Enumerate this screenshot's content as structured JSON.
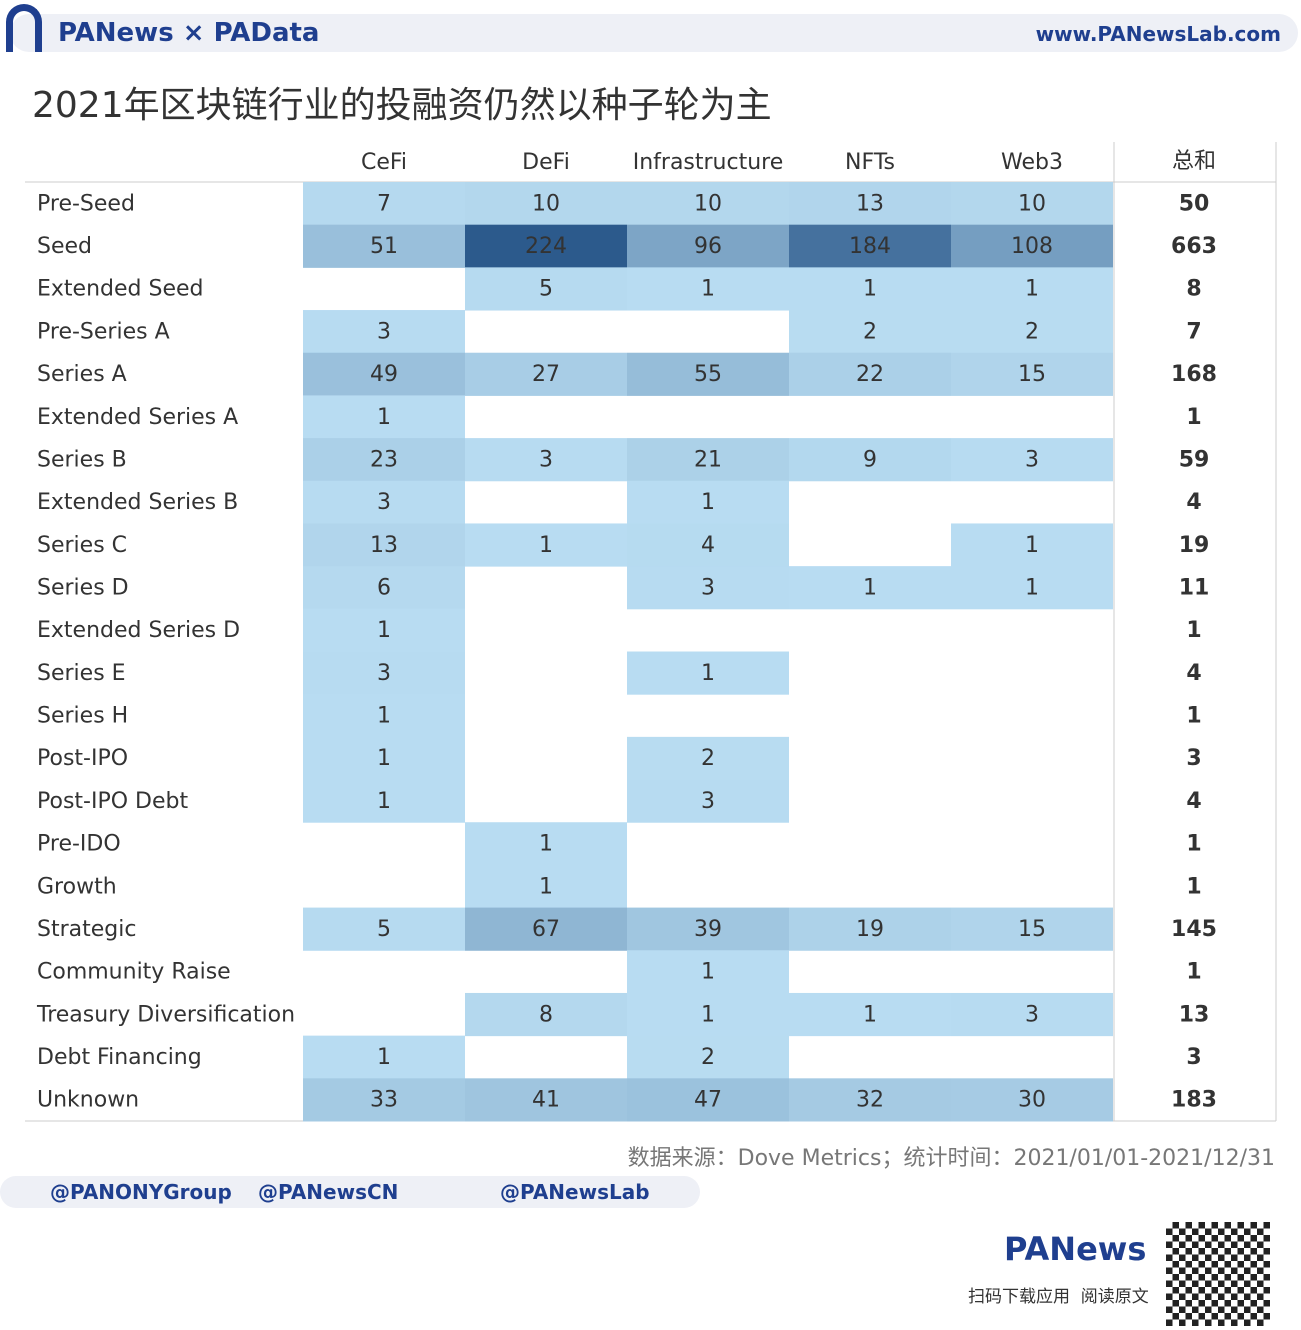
{
  "brand": {
    "left": "PANews × PAData",
    "site": "www.PANewsLab.com"
  },
  "chart_data": {
    "type": "heatmap",
    "title": "2021年区块链行业的投融资仍然以种子轮为主",
    "columns": [
      "CeFi",
      "DeFi",
      "Infrastructure",
      "NFTs",
      "Web3"
    ],
    "total_label": "总和",
    "categories": [
      "Pre-Seed",
      "Seed",
      "Extended Seed",
      "Pre-Series A",
      "Series A",
      "Extended Series A",
      "Series B",
      "Extended Series B",
      "Series C",
      "Series D",
      "Extended Series D",
      "Series E",
      "Series H",
      "Post-IPO",
      "Post-IPO Debt",
      "Pre-IDO",
      "Growth",
      "Strategic",
      "Community Raise",
      "Treasury Diversification",
      "Debt Financing",
      "Unknown"
    ],
    "values": [
      [
        7,
        10,
        10,
        13,
        10
      ],
      [
        51,
        224,
        96,
        184,
        108
      ],
      [
        null,
        5,
        1,
        1,
        1
      ],
      [
        3,
        null,
        null,
        2,
        2
      ],
      [
        49,
        27,
        55,
        22,
        15
      ],
      [
        1,
        null,
        null,
        null,
        null
      ],
      [
        23,
        3,
        21,
        9,
        3
      ],
      [
        3,
        null,
        1,
        null,
        null
      ],
      [
        13,
        1,
        4,
        null,
        1
      ],
      [
        6,
        null,
        3,
        1,
        1
      ],
      [
        1,
        null,
        null,
        null,
        null
      ],
      [
        3,
        null,
        1,
        null,
        null
      ],
      [
        1,
        null,
        null,
        null,
        null
      ],
      [
        1,
        null,
        2,
        null,
        null
      ],
      [
        1,
        null,
        3,
        null,
        null
      ],
      [
        null,
        1,
        null,
        null,
        null
      ],
      [
        null,
        1,
        null,
        null,
        null
      ],
      [
        5,
        67,
        39,
        19,
        15
      ],
      [
        null,
        null,
        1,
        null,
        null
      ],
      [
        null,
        8,
        1,
        1,
        3
      ],
      [
        1,
        null,
        2,
        null,
        null
      ],
      [
        33,
        41,
        47,
        32,
        30
      ]
    ],
    "totals": [
      50,
      663,
      8,
      7,
      168,
      1,
      59,
      4,
      19,
      11,
      1,
      4,
      1,
      3,
      4,
      1,
      1,
      145,
      1,
      13,
      3,
      183
    ],
    "colors": {
      "low": "#b9ddf2",
      "high": "#2c5a8c"
    },
    "source": "数据来源：Dove Metrics；统计时间：2021/01/01-2021/12/31"
  },
  "footer": {
    "social": [
      "@PANONYGroup",
      "@PANewsCN",
      "@PANewsLab"
    ],
    "logo": "PANews",
    "cta": "扫码下载应用  阅读原文"
  }
}
